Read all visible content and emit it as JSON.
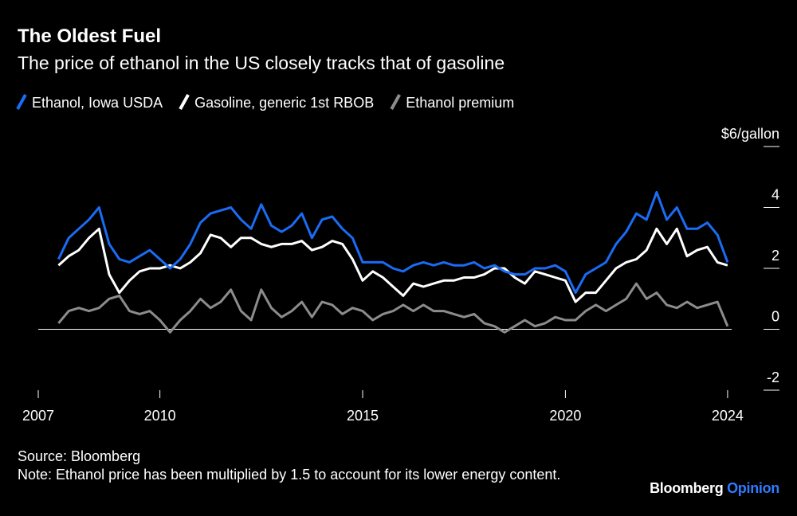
{
  "chart_data": {
    "type": "line",
    "title": "The Oldest Fuel",
    "subtitle": "The price of ethanol in the US closely tracks that of gasoline",
    "x": [
      2007.5,
      2007.75,
      2008,
      2008.25,
      2008.5,
      2008.75,
      2009,
      2009.25,
      2009.5,
      2009.75,
      2010,
      2010.25,
      2010.5,
      2010.75,
      2011,
      2011.25,
      2011.5,
      2011.75,
      2012,
      2012.25,
      2012.5,
      2012.75,
      2013,
      2013.25,
      2013.5,
      2013.75,
      2014,
      2014.25,
      2014.5,
      2014.75,
      2015,
      2015.25,
      2015.5,
      2015.75,
      2016,
      2016.25,
      2016.5,
      2016.75,
      2017,
      2017.25,
      2017.5,
      2017.75,
      2018,
      2018.25,
      2018.5,
      2018.75,
      2019,
      2019.25,
      2019.5,
      2019.75,
      2020,
      2020.25,
      2020.5,
      2020.75,
      2021,
      2021.25,
      2021.5,
      2021.75,
      2022,
      2022.25,
      2022.5,
      2022.75,
      2023,
      2023.25,
      2023.5,
      2023.75,
      2024
    ],
    "series": [
      {
        "name": "Ethanol, Iowa USDA",
        "color": "#1a6cf5",
        "values": [
          2.3,
          3.0,
          3.3,
          3.6,
          4.0,
          2.8,
          2.3,
          2.2,
          2.4,
          2.6,
          2.3,
          2.0,
          2.3,
          2.8,
          3.5,
          3.8,
          3.9,
          4.0,
          3.6,
          3.3,
          4.1,
          3.4,
          3.2,
          3.4,
          3.8,
          3.0,
          3.6,
          3.7,
          3.3,
          3.0,
          2.2,
          2.2,
          2.2,
          2.0,
          1.9,
          2.1,
          2.2,
          2.1,
          2.2,
          2.1,
          2.1,
          2.2,
          2.0,
          2.1,
          1.9,
          1.8,
          1.8,
          2.0,
          2.0,
          2.1,
          1.9,
          1.2,
          1.8,
          2.0,
          2.2,
          2.8,
          3.2,
          3.8,
          3.6,
          4.5,
          3.6,
          4.0,
          3.3,
          3.3,
          3.5,
          3.1,
          2.2
        ]
      },
      {
        "name": "Gasoline, generic 1st RBOB",
        "color": "#ffffff",
        "values": [
          2.1,
          2.4,
          2.6,
          3.0,
          3.3,
          1.8,
          1.2,
          1.6,
          1.9,
          2.0,
          2.0,
          2.1,
          2.0,
          2.2,
          2.5,
          3.1,
          3.0,
          2.7,
          3.0,
          3.0,
          2.8,
          2.7,
          2.8,
          2.8,
          2.9,
          2.6,
          2.7,
          2.9,
          2.8,
          2.3,
          1.6,
          1.9,
          1.7,
          1.4,
          1.1,
          1.5,
          1.4,
          1.5,
          1.6,
          1.6,
          1.7,
          1.7,
          1.8,
          2.0,
          2.0,
          1.7,
          1.5,
          1.9,
          1.8,
          1.7,
          1.6,
          0.9,
          1.2,
          1.2,
          1.6,
          2.0,
          2.2,
          2.3,
          2.6,
          3.3,
          2.8,
          3.3,
          2.4,
          2.6,
          2.7,
          2.2,
          2.1
        ]
      },
      {
        "name": "Ethanol premium",
        "color": "#8c8c8c",
        "values": [
          0.2,
          0.6,
          0.7,
          0.6,
          0.7,
          1.0,
          1.1,
          0.6,
          0.5,
          0.6,
          0.3,
          -0.1,
          0.3,
          0.6,
          1.0,
          0.7,
          0.9,
          1.3,
          0.6,
          0.3,
          1.3,
          0.7,
          0.4,
          0.6,
          0.9,
          0.4,
          0.9,
          0.8,
          0.5,
          0.7,
          0.6,
          0.3,
          0.5,
          0.6,
          0.8,
          0.6,
          0.8,
          0.6,
          0.6,
          0.5,
          0.4,
          0.5,
          0.2,
          0.1,
          -0.1,
          0.1,
          0.3,
          0.1,
          0.2,
          0.4,
          0.3,
          0.3,
          0.6,
          0.8,
          0.6,
          0.8,
          1.0,
          1.5,
          1.0,
          1.2,
          0.8,
          0.7,
          0.9,
          0.7,
          0.8,
          0.9,
          0.1
        ]
      }
    ],
    "xlim": [
      2007,
      2024.1
    ],
    "xticks": [
      2007,
      2010,
      2015,
      2020,
      2024
    ],
    "ylim": [
      -2,
      6
    ],
    "yticks": [
      {
        "value": 6,
        "label": "$6/gallon"
      },
      4,
      2,
      0,
      -2
    ],
    "source": "Source: Bloomberg",
    "note": "Note: Ethanol price has been multiplied by 1.5 to account for its lower energy content.",
    "brand": "Bloomberg",
    "brand_sub": "Opinion"
  }
}
